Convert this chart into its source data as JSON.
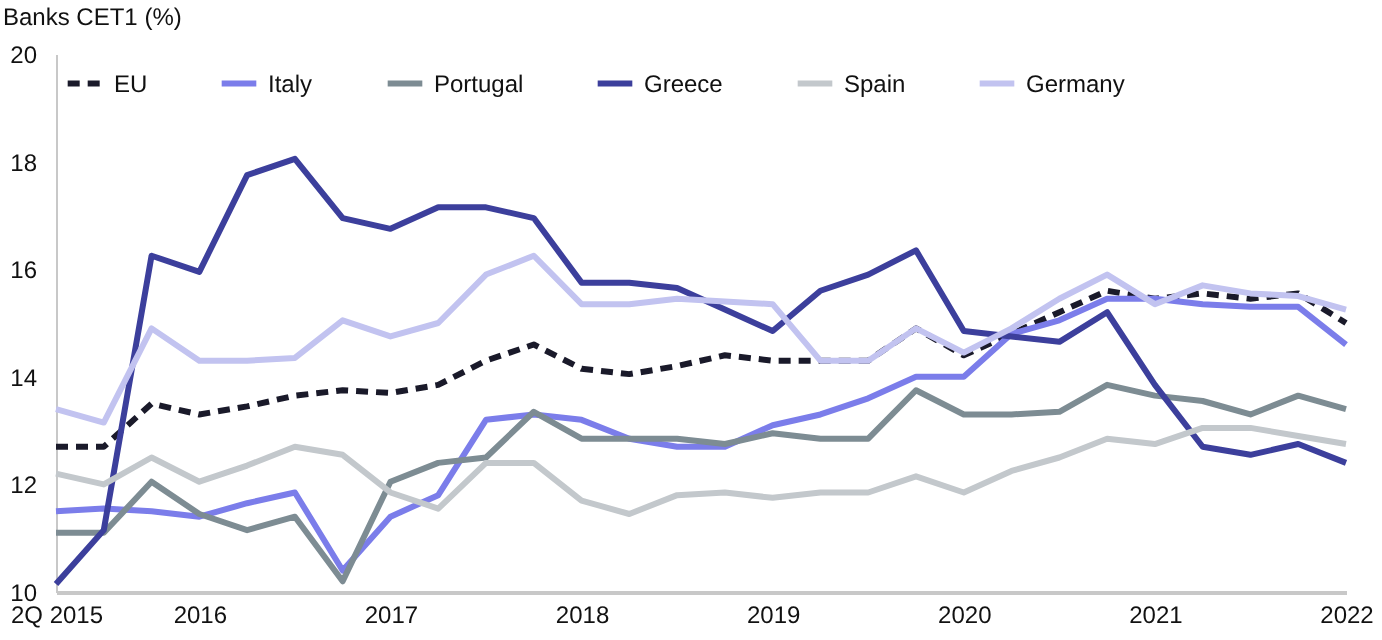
{
  "chart_data": {
    "type": "line",
    "ylabel": "Banks CET1 (%)",
    "categories": [
      "2Q 2015",
      null,
      null,
      "2016",
      null,
      null,
      null,
      "2017",
      null,
      null,
      null,
      "2018",
      null,
      null,
      null,
      "2019",
      null,
      null,
      null,
      "2020",
      null,
      null,
      null,
      "2021",
      null,
      null,
      null,
      "2022"
    ],
    "ylim": [
      10,
      20
    ],
    "yticks": [
      10,
      12,
      14,
      16,
      18,
      20
    ],
    "grid": false,
    "legend": "top",
    "marker": "none",
    "series": [
      {
        "name": "EU",
        "color": "#1a1a2a",
        "line_style": "dashed",
        "values": [
          12.7,
          12.7,
          13.5,
          13.3,
          13.45,
          13.65,
          13.75,
          13.7,
          13.85,
          14.3,
          14.6,
          14.15,
          14.05,
          14.2,
          14.4,
          14.3,
          14.3,
          14.3,
          14.9,
          14.4,
          14.8,
          15.2,
          15.6,
          15.45,
          15.55,
          15.45,
          15.55,
          15.0
        ]
      },
      {
        "name": "Italy",
        "color": "#7b7dea",
        "line_style": "solid",
        "values": [
          11.5,
          11.55,
          11.5,
          11.4,
          11.65,
          11.85,
          10.4,
          11.4,
          11.8,
          13.2,
          13.3,
          13.2,
          12.85,
          12.7,
          12.7,
          13.1,
          13.3,
          13.6,
          14.0,
          14.0,
          14.8,
          15.05,
          15.45,
          15.45,
          15.35,
          15.3,
          15.3,
          14.6
        ]
      },
      {
        "name": "Portugal",
        "color": "#7d8c93",
        "line_style": "solid",
        "values": [
          11.1,
          11.1,
          12.05,
          11.45,
          11.15,
          11.4,
          10.2,
          12.05,
          12.4,
          12.5,
          13.35,
          12.85,
          12.85,
          12.85,
          12.75,
          12.95,
          12.85,
          12.85,
          13.75,
          13.3,
          13.3,
          13.35,
          13.85,
          13.65,
          13.55,
          13.3,
          13.65,
          13.4
        ]
      },
      {
        "name": "Greece",
        "color": "#3c3f9c",
        "line_style": "solid",
        "values": [
          10.15,
          11.15,
          16.25,
          15.95,
          17.75,
          18.05,
          16.95,
          16.75,
          17.15,
          17.15,
          16.95,
          15.75,
          15.75,
          15.65,
          15.25,
          14.85,
          15.6,
          15.9,
          16.35,
          14.85,
          14.75,
          14.65,
          15.2,
          13.85,
          12.7,
          12.55,
          12.75,
          12.4
        ]
      },
      {
        "name": "Spain",
        "color": "#c3c8cc",
        "line_style": "solid",
        "values": [
          12.2,
          12.0,
          12.5,
          12.05,
          12.35,
          12.7,
          12.55,
          11.85,
          11.55,
          12.4,
          12.4,
          11.7,
          11.45,
          11.8,
          11.85,
          11.75,
          11.85,
          11.85,
          12.15,
          11.85,
          12.25,
          12.5,
          12.85,
          12.75,
          13.05,
          13.05,
          12.9,
          12.75
        ]
      },
      {
        "name": "Germany",
        "color": "#c2c3f0",
        "line_style": "solid",
        "values": [
          13.4,
          13.15,
          14.9,
          14.3,
          14.3,
          14.35,
          15.05,
          14.75,
          15.0,
          15.9,
          16.25,
          15.35,
          15.35,
          15.45,
          15.4,
          15.35,
          14.3,
          14.3,
          14.9,
          14.45,
          14.9,
          15.45,
          15.9,
          15.35,
          15.7,
          15.55,
          15.5,
          15.25
        ]
      }
    ]
  }
}
